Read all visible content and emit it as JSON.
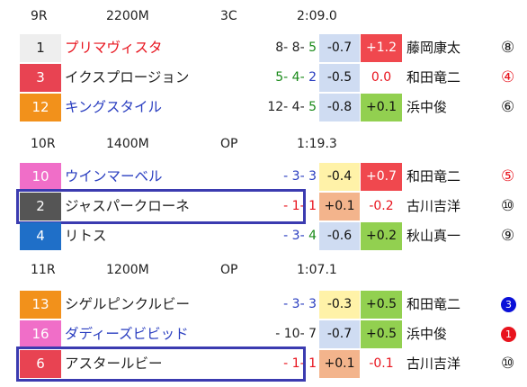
{
  "races": [
    {
      "race": "9R",
      "distance": "2200M",
      "cls": "3C",
      "time": "2:09.0",
      "rows": [
        {
          "num": "1",
          "num_bg": "#eeeeee",
          "num_color": "#222222",
          "name": "プリマヴィスタ",
          "name_color": "#e8141e",
          "p1": "8",
          "p2": "8",
          "p3": "5",
          "pos_color": "#222222",
          "p3_color": "#1a8a1a",
          "d1": "-0.7",
          "d1_bg": "#cfdcf2",
          "d2": "+1.2",
          "d2_bg": "#f0484e",
          "d2_color": "#ffffff",
          "jockey": "藤岡康太",
          "mark": "⑧",
          "mark_style": "outline-black"
        },
        {
          "num": "3",
          "num_bg": "#e84352",
          "num_color": "#ffffff",
          "name": "イクスプロージョン",
          "name_color": "#222222",
          "p1": "5",
          "p2": "4",
          "p3": "2",
          "pos_color": "#1a8a1a",
          "p3_color": "#2a3ec0",
          "d1": "-0.5",
          "d1_bg": "#cfdcf2",
          "d2": "0.0",
          "d2_bg": "#ffffff",
          "d2_color": "#e8141e",
          "jockey": "和田竜二",
          "mark": "④",
          "mark_style": "outline-red"
        },
        {
          "num": "12",
          "num_bg": "#f2911b",
          "num_color": "#ffffff",
          "name": "キングスタイル",
          "name_color": "#2a3ec0",
          "p1": "12",
          "p2": "4",
          "p3": "5",
          "pos_color": "#222222",
          "p3_color": "#1a8a1a",
          "d1": "-0.8",
          "d1_bg": "#cfdcf2",
          "d2": "+0.1",
          "d2_bg": "#92d050",
          "d2_color": "#111111",
          "jockey": "浜中俊",
          "mark": "⑥",
          "mark_style": "outline-black"
        }
      ]
    },
    {
      "race": "10R",
      "distance": "1400M",
      "cls": "OP",
      "time": "1:19.3",
      "rows": [
        {
          "num": "10",
          "num_bg": "#f06ec8",
          "num_color": "#ffffff",
          "name": "ウインマーベル",
          "name_color": "#2a3ec0",
          "p1": "",
          "p2": "3",
          "p3": "3",
          "pos_color": "#2a3ec0",
          "p3_color": "#2a3ec0",
          "d1": "-0.4",
          "d1_bg": "#fff2a8",
          "d2": "+0.7",
          "d2_bg": "#f0484e",
          "d2_color": "#ffffff",
          "jockey": "和田竜二",
          "mark": "⑤",
          "mark_style": "outline-red"
        },
        {
          "num": "2",
          "num_bg": "#555555",
          "num_color": "#ffffff",
          "name": "ジャスパークローネ",
          "name_color": "#222222",
          "p1": "",
          "p2": "1",
          "p3": "1",
          "pos_color": "#e8141e",
          "p3_color": "#e8141e",
          "d1": "+0.1",
          "d1_bg": "#f3b48c",
          "d2": "-0.2",
          "d2_bg": "#ffffff",
          "d2_color": "#e8141e",
          "jockey": "古川吉洋",
          "mark": "⑩",
          "mark_style": "outline-black"
        },
        {
          "num": "4",
          "num_bg": "#1f6fc8",
          "num_color": "#ffffff",
          "name": "リトス",
          "name_color": "#222222",
          "p1": "",
          "p2": "3",
          "p3": "4",
          "pos_color": "#2a3ec0",
          "p3_color": "#1a8a1a",
          "d1": "-0.6",
          "d1_bg": "#cfdcf2",
          "d2": "+0.2",
          "d2_bg": "#92d050",
          "d2_color": "#111111",
          "jockey": "秋山真一",
          "mark": "⑨",
          "mark_style": "outline-black"
        }
      ]
    },
    {
      "race": "11R",
      "distance": "1200M",
      "cls": "OP",
      "time": "1:07.1",
      "rows": [
        {
          "num": "13",
          "num_bg": "#f2911b",
          "num_color": "#ffffff",
          "name": "シゲルピンクルビー",
          "name_color": "#222222",
          "p1": "",
          "p2": "3",
          "p3": "3",
          "pos_color": "#2a3ec0",
          "p3_color": "#2a3ec0",
          "d1": "-0.3",
          "d1_bg": "#fff2a8",
          "d2": "+0.5",
          "d2_bg": "#92d050",
          "d2_color": "#111111",
          "jockey": "和田竜二",
          "mark": "3",
          "mark_style": "filled-blue"
        },
        {
          "num": "16",
          "num_bg": "#f06ec8",
          "num_color": "#ffffff",
          "name": "ダディーズビビッド",
          "name_color": "#2a3ec0",
          "p1": "",
          "p2": "10",
          "p3": "7",
          "pos_color": "#222222",
          "p3_color": "#222222",
          "d1": "-0.7",
          "d1_bg": "#cfdcf2",
          "d2": "+0.5",
          "d2_bg": "#92d050",
          "d2_color": "#111111",
          "jockey": "浜中俊",
          "mark": "1",
          "mark_style": "filled-red"
        },
        {
          "num": "6",
          "num_bg": "#e84352",
          "num_color": "#ffffff",
          "name": "アスタールビー",
          "name_color": "#222222",
          "p1": "",
          "p2": "1",
          "p3": "1",
          "pos_color": "#e8141e",
          "p3_color": "#e8141e",
          "d1": "+0.1",
          "d1_bg": "#f3b48c",
          "d2": "-0.1",
          "d2_bg": "#ffffff",
          "d2_color": "#e8141e",
          "jockey": "古川吉洋",
          "mark": "⑩",
          "mark_style": "outline-black"
        }
      ]
    }
  ]
}
